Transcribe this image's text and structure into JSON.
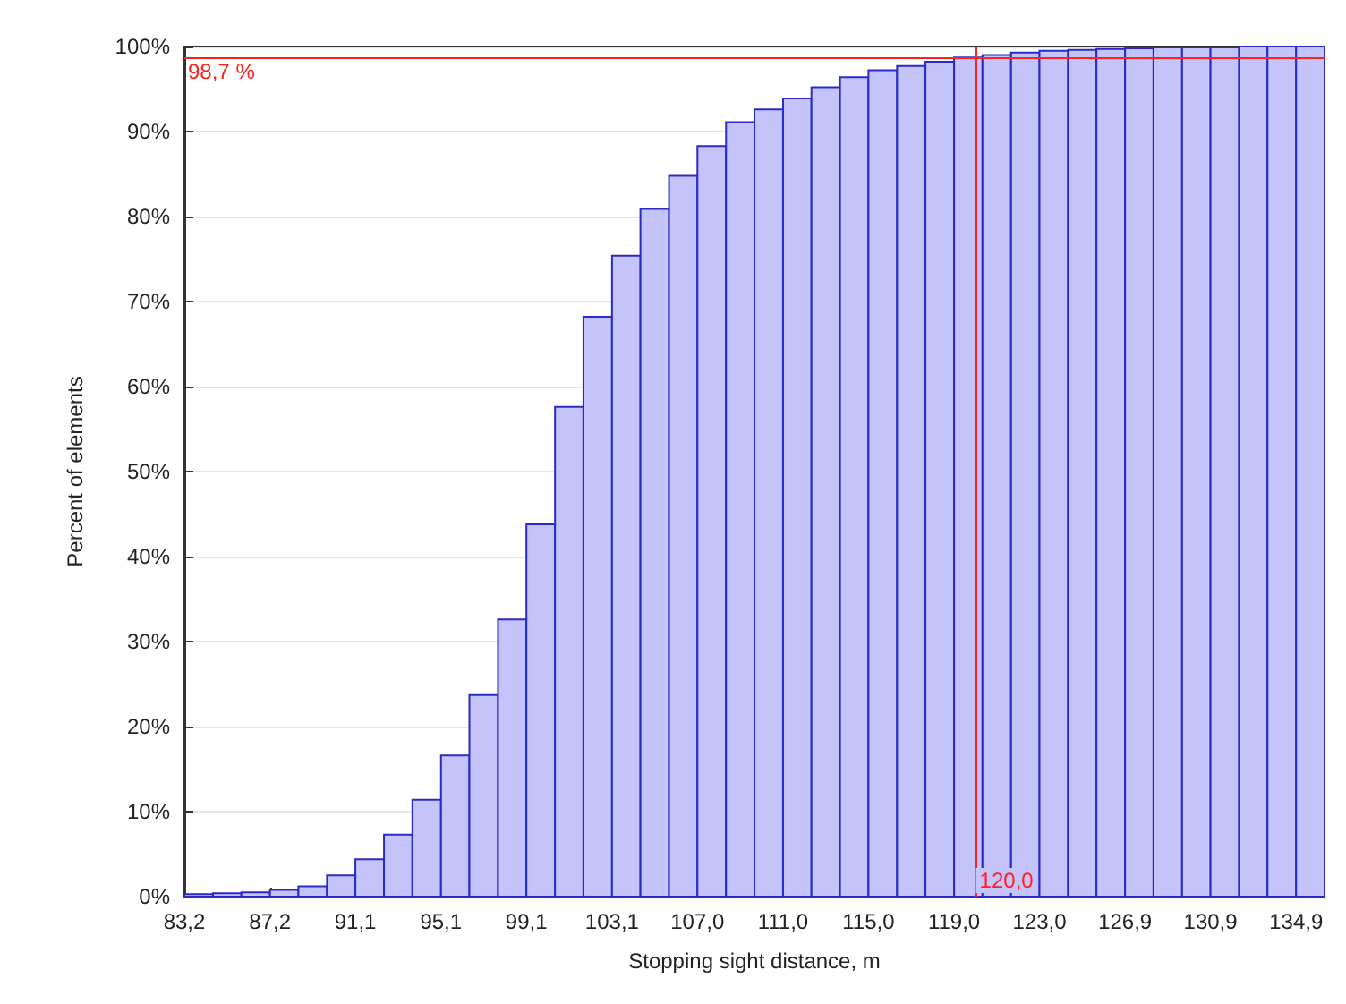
{
  "chart_data": {
    "type": "histogram",
    "xlabel": "Stopping sight distance, m",
    "ylabel": "Percent of elements",
    "bins": [
      83.2,
      84.53,
      85.85,
      87.18,
      88.5,
      89.83,
      91.15,
      92.48,
      93.8,
      95.13,
      96.45,
      97.78,
      99.1,
      100.43,
      101.75,
      103.08,
      104.4,
      105.73,
      107.05,
      108.38,
      109.7,
      111.03,
      112.35,
      113.68,
      115.0,
      116.33,
      117.65,
      118.98,
      120.3,
      121.63,
      122.95,
      124.28,
      125.6,
      126.93,
      128.25,
      129.58,
      130.9,
      132.23,
      133.55,
      134.88,
      136.2
    ],
    "values": [
      0.3,
      0.4,
      0.5,
      0.8,
      1.2,
      2.5,
      4.4,
      7.3,
      11.4,
      16.6,
      23.7,
      32.6,
      43.8,
      57.6,
      68.2,
      75.4,
      80.9,
      84.8,
      88.3,
      91.1,
      92.6,
      93.9,
      95.2,
      96.4,
      97.2,
      97.7,
      98.2,
      98.7,
      99.0,
      99.3,
      99.5,
      99.6,
      99.7,
      99.8,
      99.9,
      99.9,
      99.9,
      100,
      100,
      100
    ],
    "color": "#c4c4fa",
    "xlim": [
      83.2,
      136.2
    ],
    "xticks": [
      {
        "value": 83.2,
        "label": "83,2"
      },
      {
        "value": 87.18,
        "label": "87,2"
      },
      {
        "value": 91.15,
        "label": "91,1"
      },
      {
        "value": 95.13,
        "label": "95,1"
      },
      {
        "value": 99.1,
        "label": "99,1"
      },
      {
        "value": 103.08,
        "label": "103,1"
      },
      {
        "value": 107.05,
        "label": "107,0"
      },
      {
        "value": 111.03,
        "label": "111,0"
      },
      {
        "value": 115.0,
        "label": "115,0"
      },
      {
        "value": 118.98,
        "label": "119,0"
      },
      {
        "value": 122.95,
        "label": "123,0"
      },
      {
        "value": 126.93,
        "label": "126,9"
      },
      {
        "value": 130.9,
        "label": "130,9"
      },
      {
        "value": 134.88,
        "label": "134,9"
      }
    ],
    "ylim": [
      0,
      100
    ],
    "yticks": [
      {
        "value": 0,
        "label": "0%"
      },
      {
        "value": 10,
        "label": "10%"
      },
      {
        "value": 20,
        "label": "20%"
      },
      {
        "value": 30,
        "label": "30%"
      },
      {
        "value": 40,
        "label": "40%"
      },
      {
        "value": 50,
        "label": "50%"
      },
      {
        "value": 60,
        "label": "60%"
      },
      {
        "value": 70,
        "label": "70%"
      },
      {
        "value": 80,
        "label": "80%"
      },
      {
        "value": 90,
        "label": "90%"
      },
      {
        "value": 100,
        "label": "100%"
      }
    ],
    "grid": "y",
    "ref_lines": [
      {
        "axis": "y",
        "value": 98.7,
        "label": "98,7 %",
        "color": "#ff2020"
      },
      {
        "axis": "x",
        "value": 120.0,
        "label": "120,0",
        "color": "#ff2020"
      }
    ]
  }
}
